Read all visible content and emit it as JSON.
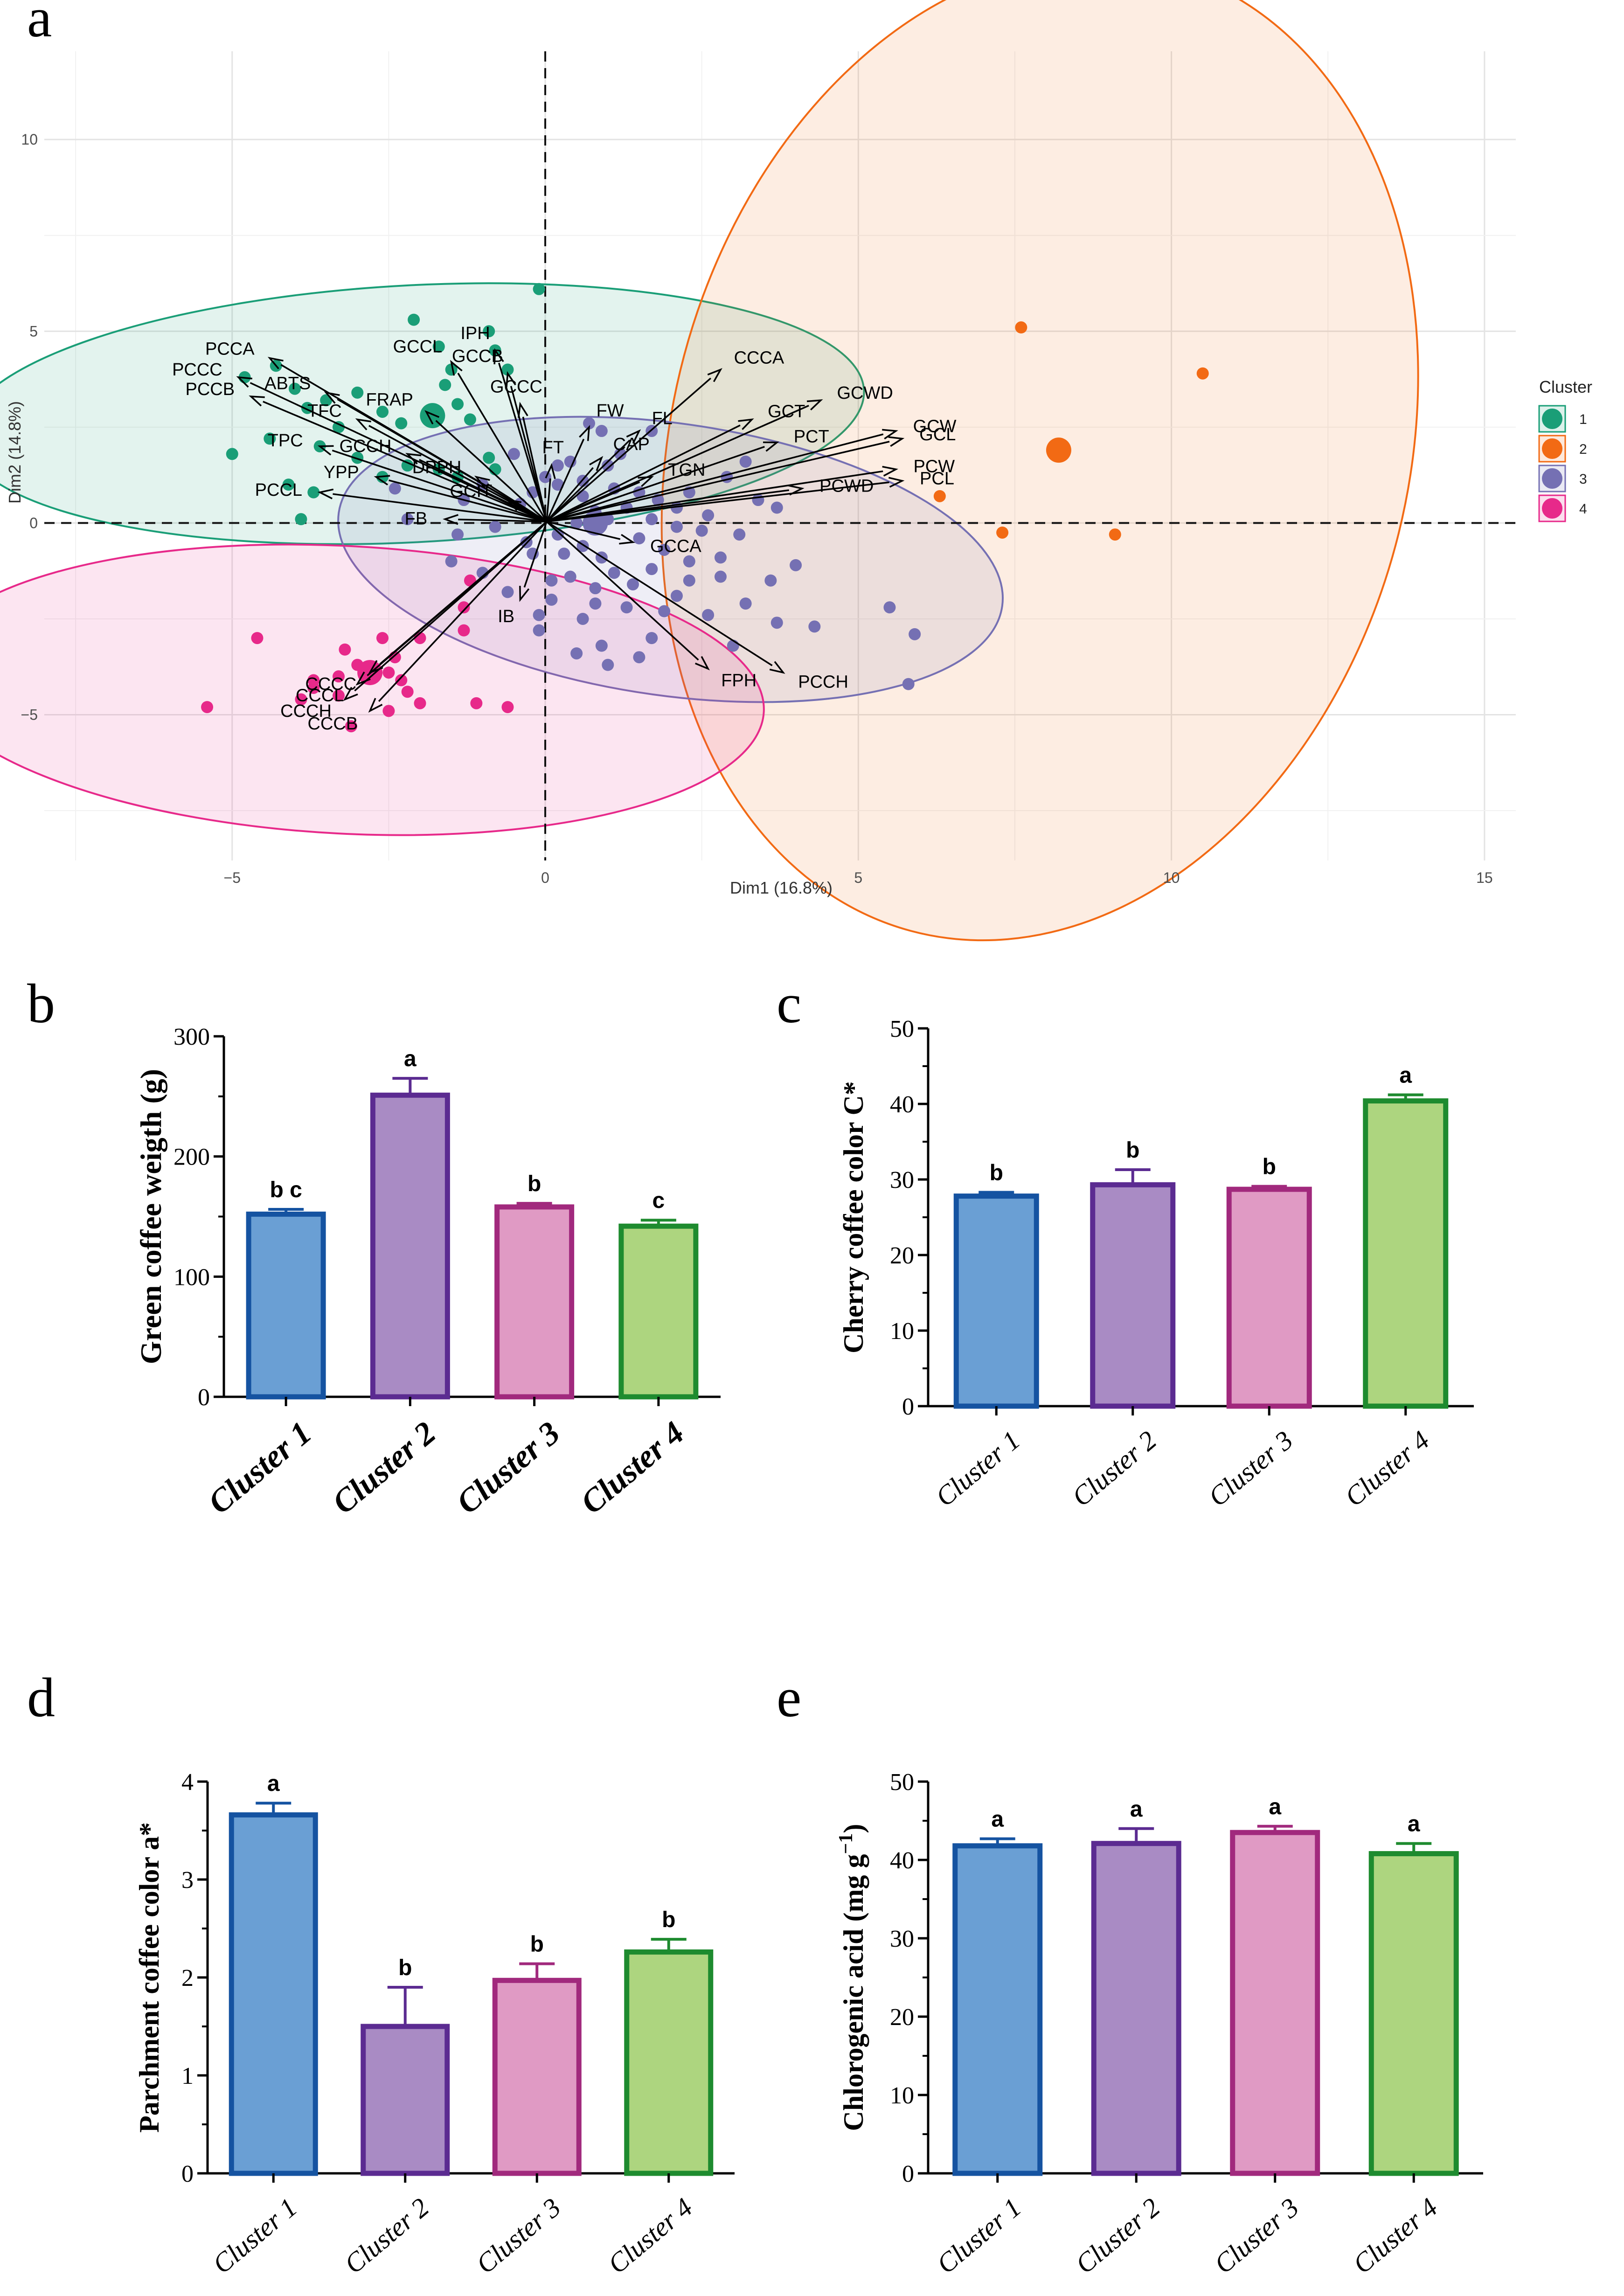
{
  "panels": {
    "a": "a",
    "b": "b",
    "c": "c",
    "d": "d",
    "e": "e"
  },
  "chart_data": [
    {
      "panel": "a",
      "type": "scatter",
      "xlabel": "Dim1 (16.8%)",
      "ylabel": "Dim2 (14.8%)",
      "xlim": [
        -8,
        15.5
      ],
      "ylim": [
        -8.8,
        12.3
      ],
      "x_ticks": [
        -5,
        0,
        5,
        10,
        15
      ],
      "y_ticks": [
        -5,
        0,
        5,
        10
      ],
      "x_tick_labels": [
        "−5",
        "0",
        "5",
        "10",
        "15"
      ],
      "y_tick_labels": [
        "−5",
        "0",
        "5",
        "10"
      ],
      "legend": {
        "title": "Cluster",
        "position": "right",
        "entries": [
          {
            "label": "1",
            "color": "#1a9e77"
          },
          {
            "label": "2",
            "color": "#f26a14"
          },
          {
            "label": "3",
            "color": "#7570b3"
          },
          {
            "label": "4",
            "color": "#e7298a"
          }
        ]
      },
      "clusters": [
        {
          "name": "1",
          "color": "#1a9e77",
          "centroid": [
            -1.8,
            2.8
          ],
          "ellipse": {
            "cx": -2.1,
            "cy": 2.85,
            "rx": 7.2,
            "ry": 3.35,
            "rotation_deg": 3
          },
          "points": [
            [
              -0.1,
              6.1
            ],
            [
              -2.1,
              5.3
            ],
            [
              -1.7,
              4.6
            ],
            [
              -1.5,
              4.0
            ],
            [
              -0.8,
              4.5
            ],
            [
              -0.6,
              4.0
            ],
            [
              -0.9,
              5.0
            ],
            [
              -4.3,
              4.1
            ],
            [
              -4.8,
              3.8
            ],
            [
              -4.0,
              3.5
            ],
            [
              -3.5,
              3.2
            ],
            [
              -3.8,
              3.0
            ],
            [
              -3.0,
              3.4
            ],
            [
              -2.6,
              2.9
            ],
            [
              -2.3,
              2.6
            ],
            [
              -3.3,
              2.5
            ],
            [
              -3.6,
              2.0
            ],
            [
              -4.4,
              2.2
            ],
            [
              -5.0,
              1.8
            ],
            [
              -3.0,
              1.7
            ],
            [
              -2.2,
              1.5
            ],
            [
              -2.6,
              1.2
            ],
            [
              -1.7,
              1.4
            ],
            [
              -1.4,
              1.2
            ],
            [
              -0.9,
              1.7
            ],
            [
              -1.4,
              3.1
            ],
            [
              -1.6,
              3.6
            ],
            [
              -1.2,
              2.7
            ],
            [
              -0.8,
              1.4
            ],
            [
              -3.7,
              0.8
            ],
            [
              -4.1,
              1.0
            ],
            [
              -3.9,
              0.1
            ]
          ]
        },
        {
          "name": "2",
          "color": "#f26a14",
          "centroid": [
            8.2,
            1.9
          ],
          "ellipse": {
            "cx": 7.9,
            "cy": 1.9,
            "rx": 7.95,
            "ry": 9.6,
            "rotation_deg": 75
          },
          "points": [
            [
              7.6,
              5.1
            ],
            [
              10.5,
              3.9
            ],
            [
              6.3,
              0.7
            ],
            [
              7.3,
              -0.25
            ],
            [
              9.1,
              -0.3
            ]
          ]
        },
        {
          "name": "3",
          "color": "#7570b3",
          "centroid": [
            0.8,
            0.0
          ],
          "ellipse": {
            "cx": 2.0,
            "cy": -0.95,
            "rx": 5.35,
            "ry": 3.55,
            "rotation_deg": -8
          },
          "points": [
            [
              0.7,
              2.6
            ],
            [
              0.9,
              2.4
            ],
            [
              1.7,
              2.4
            ],
            [
              1.0,
              1.5
            ],
            [
              0.4,
              1.6
            ],
            [
              0.0,
              1.2
            ],
            [
              -0.5,
              1.8
            ],
            [
              -1.0,
              1.0
            ],
            [
              -1.3,
              0.6
            ],
            [
              -2.4,
              0.9
            ],
            [
              -2.2,
              0.1
            ],
            [
              -1.4,
              -0.3
            ],
            [
              -0.8,
              -0.1
            ],
            [
              -0.4,
              0.5
            ],
            [
              -0.3,
              -0.5
            ],
            [
              0.2,
              -0.3
            ],
            [
              0.6,
              0.7
            ],
            [
              0.8,
              0.3
            ],
            [
              1.1,
              0.9
            ],
            [
              1.3,
              0.4
            ],
            [
              1.5,
              0.8
            ],
            [
              1.8,
              0.6
            ],
            [
              2.1,
              0.4
            ],
            [
              2.3,
              0.8
            ],
            [
              2.6,
              0.2
            ],
            [
              2.9,
              1.2
            ],
            [
              3.2,
              1.6
            ],
            [
              3.4,
              0.6
            ],
            [
              3.7,
              0.4
            ],
            [
              0.2,
              1.0
            ],
            [
              1.5,
              -0.4
            ],
            [
              1.9,
              -0.7
            ],
            [
              2.3,
              -1.0
            ],
            [
              2.8,
              -0.9
            ],
            [
              3.1,
              -0.3
            ],
            [
              0.6,
              -0.6
            ],
            [
              0.9,
              -0.9
            ],
            [
              1.1,
              -1.3
            ],
            [
              1.4,
              -1.6
            ],
            [
              1.7,
              -1.2
            ],
            [
              0.4,
              -1.4
            ],
            [
              0.1,
              -2.0
            ],
            [
              -0.1,
              -2.4
            ],
            [
              0.6,
              -2.5
            ],
            [
              0.8,
              -2.1
            ],
            [
              1.3,
              -2.2
            ],
            [
              1.7,
              -3.0
            ],
            [
              0.9,
              -3.2
            ],
            [
              0.5,
              -3.4
            ],
            [
              1.0,
              -3.7
            ],
            [
              1.5,
              -3.5
            ],
            [
              -0.1,
              -2.8
            ],
            [
              -0.6,
              -1.8
            ],
            [
              -1.0,
              -1.3
            ],
            [
              -1.5,
              -1.0
            ],
            [
              2.8,
              -1.4
            ],
            [
              3.6,
              -1.5
            ],
            [
              4.0,
              -1.1
            ],
            [
              3.2,
              -2.1
            ],
            [
              3.7,
              -2.6
            ],
            [
              4.3,
              -2.7
            ],
            [
              5.5,
              -2.2
            ],
            [
              5.9,
              -2.9
            ],
            [
              5.8,
              -4.2
            ],
            [
              2.1,
              -1.9
            ],
            [
              2.6,
              -2.4
            ],
            [
              3.0,
              -3.2
            ],
            [
              0.2,
              1.5
            ],
            [
              1.2,
              1.8
            ],
            [
              0.6,
              1.1
            ],
            [
              -0.2,
              0.8
            ],
            [
              0.5,
              0.0
            ],
            [
              1.0,
              0.1
            ],
            [
              1.7,
              0.1
            ],
            [
              2.1,
              -0.1
            ],
            [
              2.5,
              -0.2
            ],
            [
              0.3,
              -0.8
            ],
            [
              -0.2,
              -0.8
            ],
            [
              0.1,
              -1.5
            ],
            [
              0.8,
              -1.7
            ],
            [
              2.3,
              -1.5
            ],
            [
              1.9,
              -2.3
            ]
          ]
        },
        {
          "name": "4",
          "color": "#e7298a",
          "centroid": [
            -2.8,
            -3.9
          ],
          "ellipse": {
            "cx": -3.2,
            "cy": -4.35,
            "rx": 6.7,
            "ry": 3.75,
            "rotation_deg": -3
          },
          "points": [
            [
              -1.2,
              -1.5
            ],
            [
              -1.3,
              -2.2
            ],
            [
              -1.3,
              -2.8
            ],
            [
              -2.0,
              -3.0
            ],
            [
              -2.6,
              -3.0
            ],
            [
              -3.2,
              -3.3
            ],
            [
              -2.4,
              -3.5
            ],
            [
              -2.5,
              -3.9
            ],
            [
              -3.0,
              -3.7
            ],
            [
              -3.3,
              -4.0
            ],
            [
              -2.3,
              -4.1
            ],
            [
              -4.6,
              -3.0
            ],
            [
              -5.4,
              -4.8
            ],
            [
              -3.7,
              -4.3
            ],
            [
              -3.3,
              -4.5
            ],
            [
              -3.1,
              -5.3
            ],
            [
              -2.5,
              -4.9
            ],
            [
              -2.0,
              -4.7
            ],
            [
              -1.1,
              -4.7
            ],
            [
              -0.6,
              -4.8
            ],
            [
              -3.9,
              -4.6
            ],
            [
              -3.7,
              -4.1
            ],
            [
              -2.2,
              -4.4
            ]
          ]
        }
      ],
      "loadings": [
        {
          "label": "PCCC",
          "x": -4.9,
          "y": 3.8
        },
        {
          "label": "PCCA",
          "x": -4.4,
          "y": 4.3
        },
        {
          "label": "PCCB",
          "x": -4.7,
          "y": 3.3
        },
        {
          "label": "ABTS",
          "x": -3.5,
          "y": 3.4
        },
        {
          "label": "TFC",
          "x": -3.0,
          "y": 2.7
        },
        {
          "label": "TPC",
          "x": -3.6,
          "y": 2.0
        },
        {
          "label": "GCCL",
          "x": -1.5,
          "y": 4.2
        },
        {
          "label": "IPH",
          "x": -0.8,
          "y": 4.5
        },
        {
          "label": "GCCB",
          "x": -0.6,
          "y": 3.9
        },
        {
          "label": "GCCC",
          "x": -0.4,
          "y": 3.1
        },
        {
          "label": "FRAP",
          "x": -1.9,
          "y": 2.9
        },
        {
          "label": "GCCH",
          "x": -2.2,
          "y": 1.8
        },
        {
          "label": "DPPH",
          "x": -1.1,
          "y": 1.2
        },
        {
          "label": "YPP",
          "x": -2.7,
          "y": 1.2
        },
        {
          "label": "PCCL",
          "x": -3.6,
          "y": 0.8
        },
        {
          "label": "GCIT",
          "x": -0.6,
          "y": 0.6
        },
        {
          "label": "FB",
          "x": -1.6,
          "y": 0.1
        },
        {
          "label": "FT",
          "x": 0.1,
          "y": 1.5
        },
        {
          "label": "FW",
          "x": 0.7,
          "y": 2.5
        },
        {
          "label": "CAP",
          "x": 0.9,
          "y": 1.7
        },
        {
          "label": "FL",
          "x": 1.5,
          "y": 2.4
        },
        {
          "label": "TGN",
          "x": 1.7,
          "y": 1.2
        },
        {
          "label": "CCCA",
          "x": 2.8,
          "y": 4.0
        },
        {
          "label": "GCWD",
          "x": 4.4,
          "y": 3.2
        },
        {
          "label": "GCT",
          "x": 3.3,
          "y": 2.7
        },
        {
          "label": "PCT",
          "x": 3.7,
          "y": 2.1
        },
        {
          "label": "GCW",
          "x": 5.6,
          "y": 2.4
        },
        {
          "label": "GCL",
          "x": 5.7,
          "y": 2.2
        },
        {
          "label": "PCW",
          "x": 5.6,
          "y": 1.4
        },
        {
          "label": "PCWD",
          "x": 4.1,
          "y": 0.9
        },
        {
          "label": "PCL",
          "x": 5.7,
          "y": 1.1
        },
        {
          "label": "GCCA",
          "x": 1.4,
          "y": -0.5
        },
        {
          "label": "FPH",
          "x": 2.6,
          "y": -3.8
        },
        {
          "label": "PCCH",
          "x": 3.8,
          "y": -3.9
        },
        {
          "label": "IB",
          "x": -0.4,
          "y": -2.0
        },
        {
          "label": "CCCC",
          "x": -2.8,
          "y": -3.9
        },
        {
          "label": "CCCL",
          "x": -3.0,
          "y": -4.2
        },
        {
          "label": "CCCH",
          "x": -3.2,
          "y": -4.6
        },
        {
          "label": "CCCB",
          "x": -2.8,
          "y": -4.9
        }
      ]
    },
    {
      "panel": "b",
      "type": "bar",
      "categories": [
        "Cluster 1",
        "Cluster 2",
        "Cluster 3",
        "Cluster 4"
      ],
      "values": [
        152,
        251,
        158,
        142
      ],
      "errors": [
        4,
        14,
        3,
        5
      ],
      "letters": [
        "b c",
        "a",
        "b",
        "c"
      ],
      "ylabel": "Green coffee weigth (g)",
      "ylim": [
        0,
        300
      ],
      "y_ticks": [
        0,
        100,
        200,
        300
      ],
      "y_tick_labels": [
        "0",
        "100",
        "200",
        "300"
      ]
    },
    {
      "panel": "c",
      "type": "bar",
      "categories": [
        "Cluster 1",
        "Cluster 2",
        "Cluster 3",
        "Cluster 4"
      ],
      "values": [
        27.8,
        29.3,
        28.7,
        40.4
      ],
      "errors": [
        0.5,
        2.0,
        0.4,
        0.8
      ],
      "letters": [
        "b",
        "b",
        "b",
        "a"
      ],
      "ylabel": "Cherry coffee color C*",
      "ylim": [
        0,
        50
      ],
      "y_ticks": [
        0,
        10,
        20,
        30,
        40,
        50
      ],
      "y_tick_labels": [
        "0",
        "10",
        "20",
        "30",
        "40",
        "50"
      ]
    },
    {
      "panel": "d",
      "type": "bar",
      "categories": [
        "Cluster 1",
        "Cluster 2",
        "Cluster 3",
        "Cluster 4"
      ],
      "values": [
        3.66,
        1.5,
        1.97,
        2.26
      ],
      "errors": [
        0.12,
        0.4,
        0.17,
        0.13
      ],
      "letters": [
        "a",
        "b",
        "b",
        "b"
      ],
      "ylabel": "Parchment coffee color a*",
      "ylim": [
        0,
        4
      ],
      "y_ticks": [
        0,
        1,
        2,
        3,
        4
      ],
      "y_tick_labels": [
        "0",
        "1",
        "2",
        "3",
        "4"
      ]
    },
    {
      "panel": "e",
      "type": "bar",
      "categories": [
        "Cluster 1",
        "Cluster 2",
        "Cluster 3",
        "Cluster 4"
      ],
      "values": [
        41.8,
        42.1,
        43.5,
        40.8
      ],
      "errors": [
        0.9,
        1.9,
        0.8,
        1.3
      ],
      "letters": [
        "a",
        "a",
        "a",
        "a"
      ],
      "ylabel": "Chlorogenic acid (mg g",
      "ylabel_sup": "−1",
      "ylabel_close": ")",
      "ylim": [
        0,
        50
      ],
      "y_ticks": [
        0,
        10,
        20,
        30,
        40,
        50
      ],
      "y_tick_labels": [
        "0",
        "10",
        "20",
        "30",
        "40",
        "50"
      ]
    }
  ],
  "bar_colors": [
    {
      "fill": "#6a9fd4",
      "stroke": "#1553a1"
    },
    {
      "fill": "#a98bc4",
      "stroke": "#5b2b91"
    },
    {
      "fill": "#e09ac4",
      "stroke": "#a1297d"
    },
    {
      "fill": "#add57f",
      "stroke": "#1e8b2f"
    }
  ]
}
